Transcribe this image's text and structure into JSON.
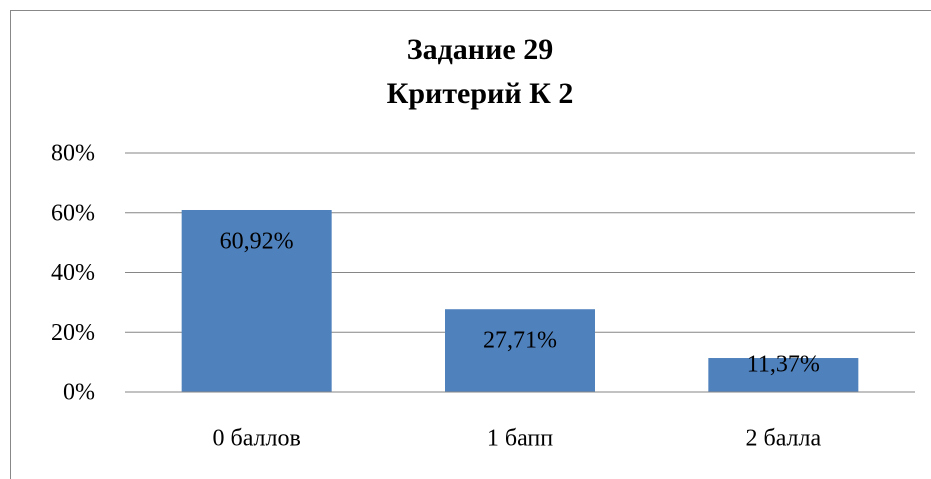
{
  "chart_data": {
    "type": "bar",
    "title": [
      "Задание 29",
      "Критерий К 2"
    ],
    "categories": [
      "0 баллов",
      "1 бапп",
      "2 балла"
    ],
    "values": [
      60.92,
      27.71,
      11.37
    ],
    "value_labels": [
      "60,92%",
      "27,71%",
      "11,37%"
    ],
    "color": "#4f81bd",
    "ylim": [
      0,
      80
    ],
    "yticks": [
      {
        "value": 0,
        "label": "0%"
      },
      {
        "value": 20,
        "label": "20%"
      },
      {
        "value": 40,
        "label": "40%"
      },
      {
        "value": 60,
        "label": "60%"
      },
      {
        "value": 80,
        "label": "80%"
      }
    ],
    "grid": true
  }
}
